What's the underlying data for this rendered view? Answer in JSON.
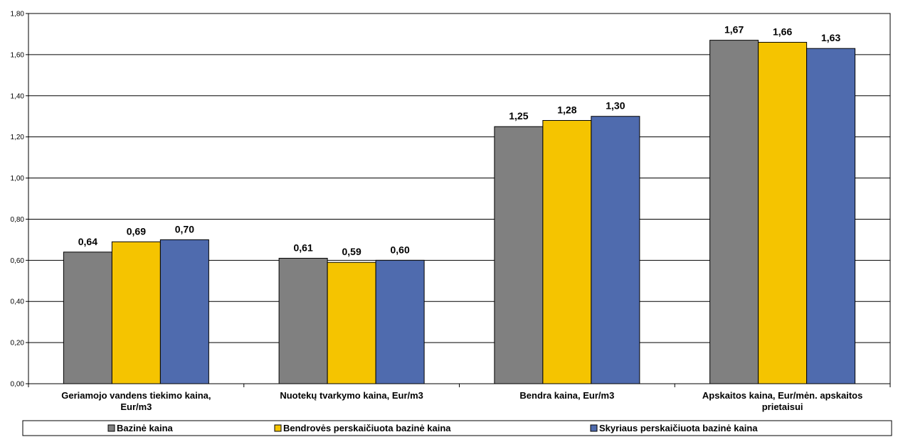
{
  "chart_data": {
    "type": "bar",
    "categories": [
      [
        "Geriamojo vandens tiekimo kaina,",
        "Eur/m3"
      ],
      [
        "Nuotekų tvarkymo kaina, Eur/m3"
      ],
      [
        "Bendra kaina, Eur/m3"
      ],
      [
        "Apskaitos kaina, Eur/mėn. apskaitos",
        "prietaisui"
      ]
    ],
    "series": [
      {
        "name": "Bazinė kaina",
        "color": "#808080",
        "values": [
          0.64,
          0.61,
          1.25,
          1.67
        ],
        "labels": [
          "0,64",
          "0,61",
          "1,25",
          "1,67"
        ]
      },
      {
        "name": "Bendrovės perskaičiuota bazinė kaina",
        "color": "#F5C400",
        "values": [
          0.69,
          0.59,
          1.28,
          1.66
        ],
        "labels": [
          "0,69",
          "0,59",
          "1,28",
          "1,66"
        ]
      },
      {
        "name": "Skyriaus perskaičiuota bazinė kaina",
        "color": "#4F6BAE",
        "values": [
          0.7,
          0.6,
          1.3,
          1.63
        ],
        "labels": [
          "0,70",
          "0,60",
          "1,30",
          "1,63"
        ]
      }
    ],
    "ylim": [
      0,
      1.8
    ],
    "yticks": [
      0,
      0.2,
      0.4,
      0.6,
      0.8,
      1.0,
      1.2,
      1.4,
      1.6,
      1.8
    ],
    "ytick_labels": [
      "0,00",
      "0,20",
      "0,40",
      "0,60",
      "0,80",
      "1,00",
      "1,20",
      "1,40",
      "1,60",
      "1,80"
    ],
    "grid": true,
    "legend_position": "bottom"
  }
}
